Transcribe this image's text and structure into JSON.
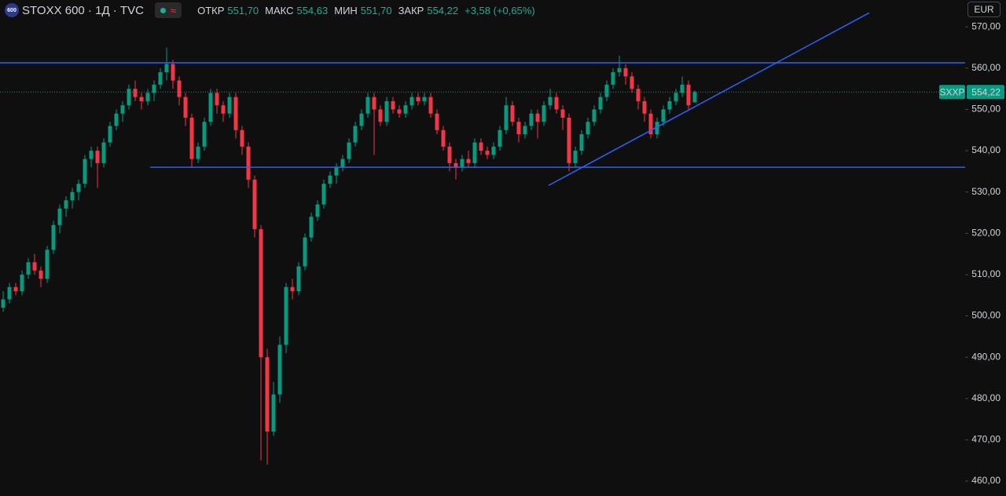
{
  "header": {
    "logo": "600",
    "symbol": "STOXX 600 · 1Д · TVC",
    "approx": "≈",
    "open_label": "ОТКР",
    "open": "551,70",
    "high_label": "МАКС",
    "high": "554,63",
    "low_label": "МИН",
    "low": "551,70",
    "close_label": "ЗАКР",
    "close": "554,22",
    "change": "+3,58 (+0,65%)",
    "currency": "EUR"
  },
  "chart_data": {
    "type": "candlestick",
    "up_color": "#089981",
    "down_color": "#f23645",
    "ylim": [
      456.4,
      576.5
    ],
    "yticks": [
      {
        "value": 570,
        "label": "570,00"
      },
      {
        "value": 560,
        "label": "560,00"
      },
      {
        "value": 550,
        "label": "550,00"
      },
      {
        "value": 540,
        "label": "540,00"
      },
      {
        "value": 530,
        "label": "530,00"
      },
      {
        "value": 520,
        "label": "520,00"
      },
      {
        "value": 510,
        "label": "510,00"
      },
      {
        "value": 500,
        "label": "500,00"
      },
      {
        "value": 490,
        "label": "490,00"
      },
      {
        "value": 480,
        "label": "480,00"
      },
      {
        "value": 470,
        "label": "470,00"
      },
      {
        "value": 460,
        "label": "460,00"
      }
    ],
    "grid": false,
    "candles": [
      [
        502,
        506,
        501,
        504
      ],
      [
        504,
        508,
        503,
        507
      ],
      [
        507,
        508,
        505,
        506
      ],
      [
        506,
        511,
        505,
        510
      ],
      [
        510,
        514,
        509,
        513
      ],
      [
        513,
        515,
        510,
        511
      ],
      [
        511,
        512,
        507,
        509
      ],
      [
        509,
        517,
        508,
        516
      ],
      [
        516,
        523,
        515,
        522
      ],
      [
        522,
        527,
        520,
        526
      ],
      [
        526,
        529,
        524,
        528
      ],
      [
        528,
        531,
        526,
        530
      ],
      [
        530,
        533,
        528,
        532
      ],
      [
        532,
        539,
        531,
        538
      ],
      [
        538,
        541,
        536,
        540
      ],
      [
        540,
        541,
        531,
        537
      ],
      [
        537,
        543,
        536,
        542
      ],
      [
        542,
        547,
        541,
        546
      ],
      [
        546,
        550,
        545,
        549
      ],
      [
        549,
        552,
        547,
        551
      ],
      [
        551,
        556,
        550,
        555
      ],
      [
        555,
        557,
        552,
        553
      ],
      [
        553,
        554,
        550,
        552
      ],
      [
        552,
        555,
        551,
        554
      ],
      [
        554,
        557,
        552,
        556
      ],
      [
        556,
        560,
        555,
        559
      ],
      [
        559,
        565,
        557,
        561
      ],
      [
        561,
        562,
        555,
        557
      ],
      [
        557,
        558,
        551,
        553
      ],
      [
        553,
        554,
        546,
        548
      ],
      [
        548,
        549,
        536,
        538
      ],
      [
        538,
        542,
        537,
        541
      ],
      [
        541,
        548,
        540,
        547
      ],
      [
        547,
        555,
        546,
        554
      ],
      [
        554,
        555,
        549,
        551
      ],
      [
        551,
        552,
        547,
        549
      ],
      [
        549,
        554,
        548,
        553
      ],
      [
        553,
        554,
        543,
        545
      ],
      [
        545,
        546,
        539,
        541
      ],
      [
        541,
        542,
        531,
        533
      ],
      [
        533,
        534,
        519,
        521
      ],
      [
        521,
        522,
        465,
        490
      ],
      [
        490,
        492,
        464,
        472
      ],
      [
        472,
        484,
        471,
        481
      ],
      [
        481,
        495,
        479,
        493
      ],
      [
        493,
        508,
        491,
        507
      ],
      [
        507,
        509,
        504,
        506
      ],
      [
        506,
        513,
        505,
        512
      ],
      [
        512,
        520,
        511,
        519
      ],
      [
        519,
        525,
        518,
        524
      ],
      [
        524,
        528,
        523,
        527
      ],
      [
        527,
        533,
        526,
        532
      ],
      [
        532,
        535,
        531,
        534
      ],
      [
        534,
        537,
        532,
        536
      ],
      [
        536,
        539,
        535,
        538
      ],
      [
        538,
        543,
        537,
        542
      ],
      [
        542,
        547,
        541,
        546
      ],
      [
        546,
        550,
        545,
        549
      ],
      [
        549,
        554,
        548,
        553
      ],
      [
        553,
        554,
        539,
        550
      ],
      [
        550,
        551,
        546,
        547
      ],
      [
        547,
        553,
        546,
        552
      ],
      [
        552,
        553,
        549,
        550
      ],
      [
        550,
        551,
        548,
        549
      ],
      [
        549,
        552,
        548,
        551
      ],
      [
        551,
        554,
        550,
        553
      ],
      [
        553,
        554,
        551,
        552
      ],
      [
        552,
        554,
        551,
        553
      ],
      [
        553,
        554,
        548,
        549
      ],
      [
        549,
        550,
        544,
        545
      ],
      [
        545,
        546,
        540,
        541
      ],
      [
        541,
        542,
        535,
        537
      ],
      [
        537,
        538,
        533,
        536
      ],
      [
        536,
        539,
        535,
        538
      ],
      [
        538,
        540,
        536,
        537
      ],
      [
        537,
        543,
        536,
        542
      ],
      [
        542,
        543,
        539,
        540
      ],
      [
        540,
        541,
        538,
        539
      ],
      [
        539,
        542,
        538,
        541
      ],
      [
        541,
        546,
        540,
        545
      ],
      [
        545,
        553,
        544,
        551
      ],
      [
        551,
        552,
        546,
        547
      ],
      [
        547,
        548,
        542,
        544
      ],
      [
        544,
        547,
        543,
        546
      ],
      [
        546,
        550,
        545,
        549
      ],
      [
        549,
        550,
        543,
        547
      ],
      [
        547,
        552,
        546,
        551
      ],
      [
        551,
        555,
        550,
        553
      ],
      [
        553,
        554,
        549,
        550
      ],
      [
        550,
        551,
        545,
        548
      ],
      [
        548,
        549,
        535,
        537
      ],
      [
        537,
        541,
        536,
        540
      ],
      [
        540,
        545,
        539,
        544
      ],
      [
        544,
        548,
        543,
        547
      ],
      [
        547,
        551,
        546,
        550
      ],
      [
        550,
        554,
        549,
        553
      ],
      [
        553,
        557,
        552,
        556
      ],
      [
        556,
        560,
        555,
        559
      ],
      [
        559,
        563,
        558,
        560
      ],
      [
        560,
        561,
        556,
        558
      ],
      [
        558,
        559,
        554,
        555
      ],
      [
        555,
        556,
        550,
        552
      ],
      [
        552,
        553,
        547,
        549
      ],
      [
        549,
        550,
        543,
        544
      ],
      [
        544,
        548,
        543,
        547
      ],
      [
        547,
        551,
        546,
        550
      ],
      [
        550,
        553,
        549,
        552
      ],
      [
        552,
        555,
        551,
        554
      ],
      [
        554,
        558,
        553,
        556
      ],
      [
        556,
        557,
        550,
        551
      ],
      [
        551.7,
        554.63,
        551.7,
        554.22
      ]
    ],
    "drawing_color": "#2962ff",
    "horizontal_lines": [
      {
        "price": 561.3,
        "from": -1
      },
      {
        "price": 536,
        "from": 23.4
      }
    ],
    "trend_line": {
      "start": [
        86.75,
        531.6
      ],
      "end": [
        137.75,
        573.4
      ]
    },
    "last_price": {
      "symbol": "SXXP",
      "value": 554.22,
      "label": "554,22",
      "color": "#089981"
    }
  }
}
